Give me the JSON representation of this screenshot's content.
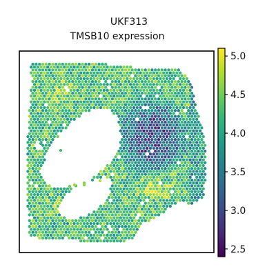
{
  "chart_data": {
    "type": "scatter",
    "kind": "spatial-transcriptomics hexagonal spot map",
    "title_line1": "UKF313",
    "title_line2": "TMSB10 expression",
    "xlabel": "",
    "ylabel": "",
    "axes_ticks_shown": false,
    "grid": false,
    "colormap": "viridis",
    "colorbar": {
      "position": "right",
      "range": [
        2.4,
        5.1
      ],
      "ticks": [
        2.5,
        3.0,
        3.5,
        4.0,
        4.5,
        5.0
      ],
      "tick_labels": [
        "2.5",
        "3.0",
        "3.5",
        "4.0",
        "4.5",
        "5.0"
      ]
    },
    "value_range": [
      2.4,
      5.1
    ],
    "spot_value_regions": {
      "left_and_bottom_tissue": "approximately 4.0 to 4.8",
      "upper_right_region": "approximately 2.6 to 3.6",
      "lower_center_band": "approximately 4.5 to 5.0",
      "right_edge": "approximately 3.3 to 3.9"
    }
  }
}
